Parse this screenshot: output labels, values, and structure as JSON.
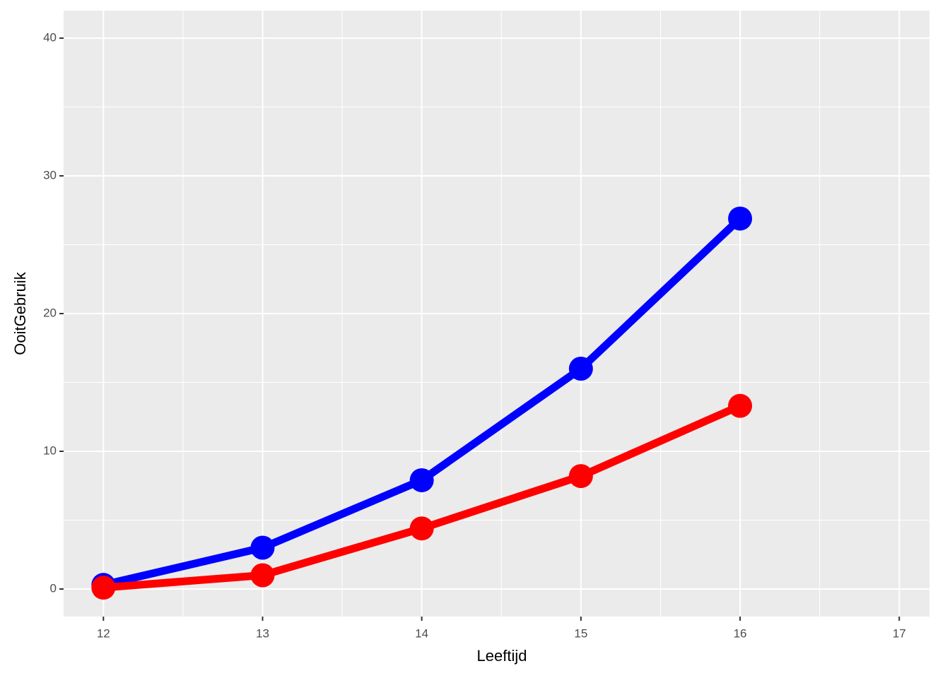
{
  "chart_data": {
    "type": "line",
    "x_label": "Leeftijd",
    "y_label": "OoitGebruik",
    "x": [
      12,
      13,
      14,
      15,
      16
    ],
    "series": [
      {
        "color": "#0000ff",
        "values": [
          0.3,
          3,
          7.9,
          16,
          26.9
        ]
      },
      {
        "color": "#ff0000",
        "values": [
          0.1,
          1,
          4.4,
          8.2,
          13.3
        ]
      }
    ],
    "xlim": [
      11.75,
      17.19
    ],
    "xticks": [
      12,
      13,
      14,
      15,
      16,
      17
    ],
    "minor_xticks": [
      12.5,
      13.5,
      14.5,
      15.5,
      16.5
    ],
    "ylim": [
      -2,
      42
    ],
    "yticks": [
      0,
      10,
      20,
      30,
      40
    ],
    "minor_yticks": [
      5,
      15,
      25,
      35
    ],
    "grid": true
  }
}
